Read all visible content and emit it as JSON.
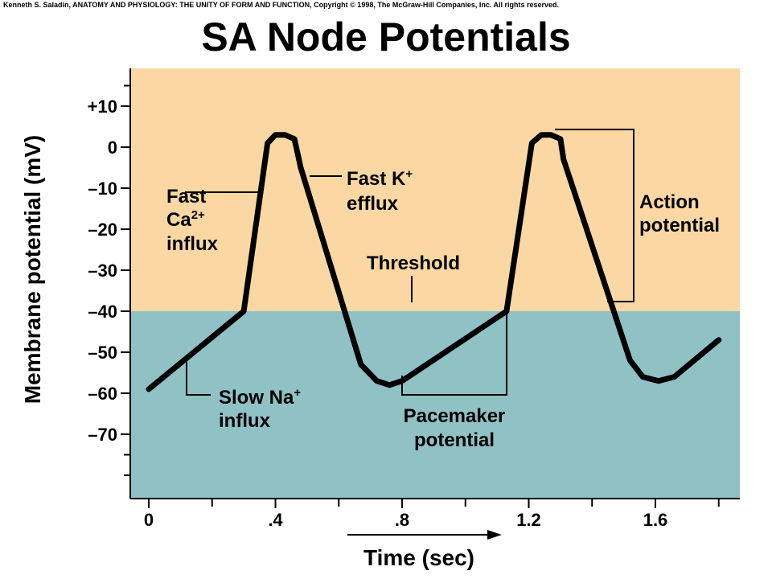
{
  "credit": "Kenneth S. Saladin, ANATOMY AND PHYSIOLOGY: THE UNITY OF FORM AND FUNCTION, Copyright © 1998, The McGraw-Hill Companies, Inc.  All rights reserved.",
  "colors": {
    "above_threshold": "#fbd7a3",
    "below_threshold": "#8fc1c5",
    "line": "#000000"
  },
  "chart_data": {
    "type": "line",
    "title": "SA Node Potentials",
    "xlabel": "Time (sec)",
    "ylabel": "Membrane potential (mV)",
    "xlim": [
      0,
      1.8
    ],
    "ylim": [
      -86,
      18
    ],
    "x_tick_labels": [
      "0",
      ".4",
      ".8",
      "1.2",
      "1.6"
    ],
    "x_ticks": [
      0,
      0.4,
      0.8,
      1.2,
      1.6
    ],
    "x_minor_ticks": [
      0.2,
      0.6,
      1.0,
      1.4,
      1.8
    ],
    "y_tick_labels": [
      "+10",
      "0",
      "–10",
      "–20",
      "–30",
      "–40",
      "–50",
      "–60",
      "–70"
    ],
    "y_ticks": [
      10,
      0,
      -10,
      -20,
      -30,
      -40,
      -50,
      -60,
      -70
    ],
    "threshold": -40,
    "grid": false,
    "series": [
      {
        "x": [
          0.0,
          0.3,
          0.375,
          0.4,
          0.43,
          0.46,
          0.48,
          0.67,
          0.72,
          0.76,
          0.8,
          1.13,
          1.21,
          1.24,
          1.27,
          1.3,
          1.31,
          1.52,
          1.56,
          1.61,
          1.66,
          1.8
        ],
        "y": [
          -59,
          -40,
          1,
          3,
          3,
          2,
          -5,
          -53,
          -57,
          -58,
          -57,
          -40,
          1,
          3,
          3,
          2,
          -3,
          -52,
          -56,
          -57,
          -56,
          -47
        ]
      }
    ],
    "annotations": {
      "fast_ca": {
        "line1": "Fast",
        "line2": "Ca",
        "sup2": "2+",
        "line3": "influx"
      },
      "fast_k": {
        "line1": "Fast K",
        "sup1": "+",
        "line2": "efflux"
      },
      "threshold": "Threshold",
      "slow_na": {
        "line1": "Slow Na",
        "sup1": "+",
        "line2": "influx"
      },
      "pacemaker": {
        "line1": "Pacemaker",
        "line2": "potential"
      },
      "action": {
        "line1": "Action",
        "line2": "potential"
      }
    }
  }
}
